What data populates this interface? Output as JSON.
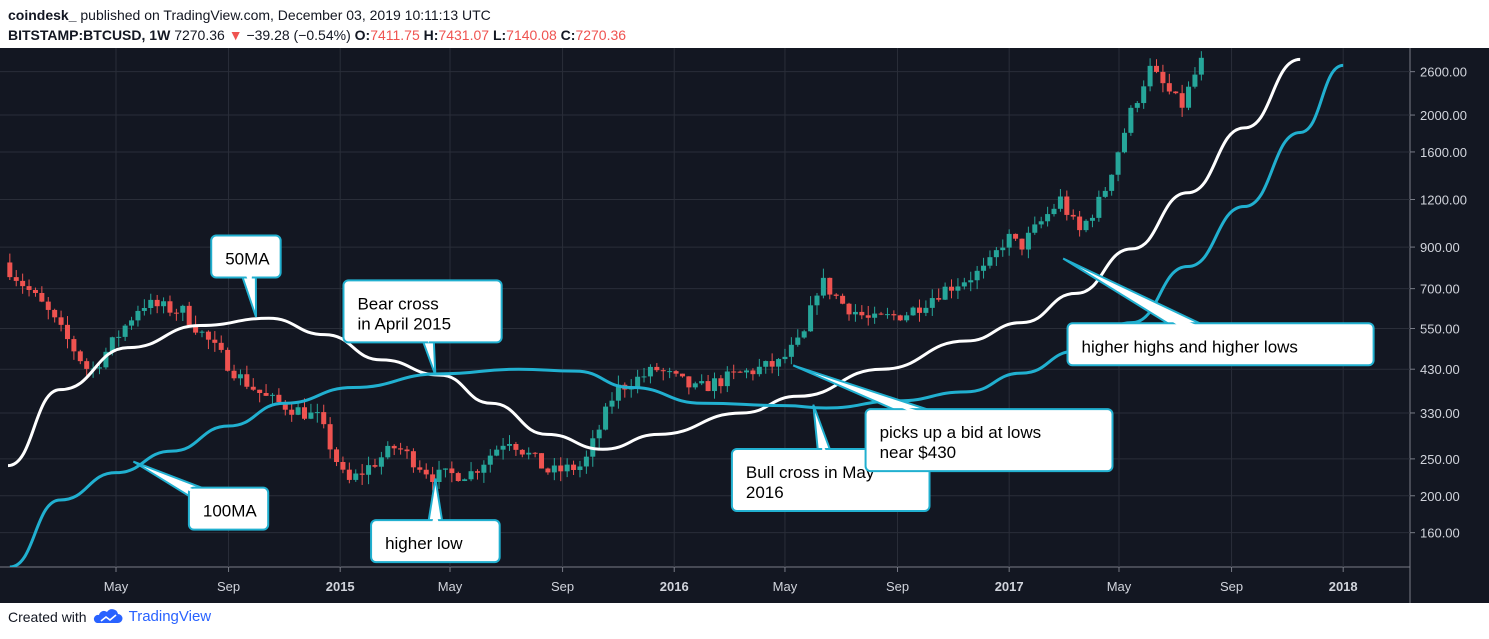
{
  "header": {
    "publisher": "coindesk_",
    "published_text": "published on TradingView.com, December 03, 2019 10:11:13 UTC",
    "symbol": "BITSTAMP:BTCUSD, 1W",
    "last": "7270.36",
    "change": "−39.28 (−0.54%)",
    "o_label": "O:",
    "o": "7411.75",
    "h_label": "H:",
    "h": "7431.07",
    "l_label": "L:",
    "l": "7140.08",
    "c_label": "C:",
    "c": "7270.36"
  },
  "footer": {
    "created_with": "Created with",
    "brand": "TradingView",
    "logo_icon": "tradingview-cloud-icon"
  },
  "colors": {
    "background": "#131722",
    "up": "#26a69a",
    "down": "#ef5350",
    "ma50": "#ffffff",
    "ma100": "#21b0d0",
    "grid": "#2a2e39"
  },
  "chart_data": {
    "type": "candlestick",
    "y_scale": "log",
    "grid": true,
    "y_ticks": [
      160,
      200,
      250,
      330,
      430,
      550,
      700,
      900,
      1200,
      1600,
      2000,
      2600
    ],
    "y_tick_labels": [
      "160.00",
      "200.00",
      "250.00",
      "330.00",
      "430.00",
      "550.00",
      "700.00",
      "900.00",
      "1200.00",
      "1600.00",
      "2000.00",
      "2600.00"
    ],
    "x_ticks": [
      {
        "label": "May",
        "date": "2014-05-01",
        "bold": false
      },
      {
        "label": "Sep",
        "date": "2014-09-01",
        "bold": false
      },
      {
        "label": "2015",
        "date": "2015-01-01",
        "bold": true
      },
      {
        "label": "May",
        "date": "2015-05-01",
        "bold": false
      },
      {
        "label": "Sep",
        "date": "2015-09-01",
        "bold": false
      },
      {
        "label": "2016",
        "date": "2016-01-01",
        "bold": true
      },
      {
        "label": "May",
        "date": "2016-05-01",
        "bold": false
      },
      {
        "label": "Sep",
        "date": "2016-09-01",
        "bold": false
      },
      {
        "label": "2017",
        "date": "2017-01-01",
        "bold": true
      },
      {
        "label": "May",
        "date": "2017-05-01",
        "bold": false
      },
      {
        "label": "Sep",
        "date": "2017-09-01",
        "bold": false
      },
      {
        "label": "2018",
        "date": "2018-01-01",
        "bold": true
      }
    ],
    "x_range": [
      "2014-01-03",
      "2018-03-15"
    ],
    "y_range": [
      130,
      3000
    ],
    "price_anchors": [
      {
        "date": "2014-01-05",
        "price": 820
      },
      {
        "date": "2014-02-20",
        "price": 620
      },
      {
        "date": "2014-04-10",
        "price": 420
      },
      {
        "date": "2014-06-05",
        "price": 640
      },
      {
        "date": "2014-07-20",
        "price": 610
      },
      {
        "date": "2014-09-20",
        "price": 410
      },
      {
        "date": "2014-10-20",
        "price": 360
      },
      {
        "date": "2014-12-15",
        "price": 320
      },
      {
        "date": "2015-01-15",
        "price": 215
      },
      {
        "date": "2015-03-10",
        "price": 270
      },
      {
        "date": "2015-04-20",
        "price": 225
      },
      {
        "date": "2015-06-01",
        "price": 230
      },
      {
        "date": "2015-07-10",
        "price": 285
      },
      {
        "date": "2015-08-25",
        "price": 230
      },
      {
        "date": "2015-10-01",
        "price": 240
      },
      {
        "date": "2015-11-05",
        "price": 380
      },
      {
        "date": "2015-12-20",
        "price": 430
      },
      {
        "date": "2016-02-01",
        "price": 380
      },
      {
        "date": "2016-03-15",
        "price": 415
      },
      {
        "date": "2016-05-01",
        "price": 445
      },
      {
        "date": "2016-05-28",
        "price": 520
      },
      {
        "date": "2016-06-15",
        "price": 740
      },
      {
        "date": "2016-07-10",
        "price": 640
      },
      {
        "date": "2016-08-10",
        "price": 575
      },
      {
        "date": "2016-09-20",
        "price": 605
      },
      {
        "date": "2016-10-25",
        "price": 690
      },
      {
        "date": "2016-12-15",
        "price": 790
      },
      {
        "date": "2017-01-05",
        "price": 960
      },
      {
        "date": "2017-01-20",
        "price": 900
      },
      {
        "date": "2017-03-05",
        "price": 1200
      },
      {
        "date": "2017-03-25",
        "price": 980
      },
      {
        "date": "2017-04-20",
        "price": 1220
      },
      {
        "date": "2017-05-20",
        "price": 2000
      },
      {
        "date": "2017-06-10",
        "price": 2650
      },
      {
        "date": "2017-07-15",
        "price": 2100
      },
      {
        "date": "2017-08-05",
        "price": 2750
      }
    ],
    "series": [
      {
        "name": "50MA",
        "color": "#ffffff",
        "points": [
          {
            "date": "2014-01-03",
            "price": 240
          },
          {
            "date": "2014-03-01",
            "price": 380
          },
          {
            "date": "2014-05-15",
            "price": 490
          },
          {
            "date": "2014-08-01",
            "price": 560
          },
          {
            "date": "2014-10-15",
            "price": 585
          },
          {
            "date": "2014-12-15",
            "price": 530
          },
          {
            "date": "2015-02-15",
            "price": 455
          },
          {
            "date": "2015-04-20",
            "price": 415
          },
          {
            "date": "2015-06-15",
            "price": 350
          },
          {
            "date": "2015-08-15",
            "price": 290
          },
          {
            "date": "2015-10-15",
            "price": 265
          },
          {
            "date": "2015-12-15",
            "price": 290
          },
          {
            "date": "2016-03-15",
            "price": 330
          },
          {
            "date": "2016-05-15",
            "price": 365
          },
          {
            "date": "2016-08-15",
            "price": 430
          },
          {
            "date": "2016-11-15",
            "price": 510
          },
          {
            "date": "2017-01-15",
            "price": 570
          },
          {
            "date": "2017-03-15",
            "price": 680
          },
          {
            "date": "2017-05-15",
            "price": 890
          },
          {
            "date": "2017-07-15",
            "price": 1250
          },
          {
            "date": "2017-09-15",
            "price": 1850
          },
          {
            "date": "2017-11-15",
            "price": 2800
          }
        ]
      },
      {
        "name": "100MA",
        "color": "#21b0d0",
        "points": [
          {
            "date": "2014-01-05",
            "price": 130
          },
          {
            "date": "2014-03-01",
            "price": 195
          },
          {
            "date": "2014-05-01",
            "price": 230
          },
          {
            "date": "2014-07-01",
            "price": 262
          },
          {
            "date": "2014-09-01",
            "price": 305
          },
          {
            "date": "2014-11-01",
            "price": 350
          },
          {
            "date": "2015-01-15",
            "price": 385
          },
          {
            "date": "2015-04-20",
            "price": 418
          },
          {
            "date": "2015-07-15",
            "price": 430
          },
          {
            "date": "2015-09-15",
            "price": 425
          },
          {
            "date": "2015-11-15",
            "price": 385
          },
          {
            "date": "2016-02-01",
            "price": 350
          },
          {
            "date": "2016-05-01",
            "price": 345
          },
          {
            "date": "2016-06-15",
            "price": 340
          },
          {
            "date": "2016-09-01",
            "price": 355
          },
          {
            "date": "2016-11-15",
            "price": 375
          },
          {
            "date": "2017-01-15",
            "price": 420
          },
          {
            "date": "2017-03-15",
            "price": 480
          },
          {
            "date": "2017-05-15",
            "price": 570
          },
          {
            "date": "2017-07-15",
            "price": 800
          },
          {
            "date": "2017-09-15",
            "price": 1150
          },
          {
            "date": "2017-11-15",
            "price": 1800
          },
          {
            "date": "2018-01-01",
            "price": 2700
          }
        ]
      }
    ],
    "annotations": [
      {
        "id": "ma50",
        "text": [
          "50MA"
        ],
        "anchor": {
          "date": "2014-10-01",
          "price": 590
        },
        "box_center": {
          "date": "2014-09-20",
          "price": 850
        }
      },
      {
        "id": "bear",
        "text": [
          "Bear cross",
          "in April 2015"
        ],
        "anchor": {
          "date": "2015-04-15",
          "price": 415
        },
        "box_center": {
          "date": "2015-04-01",
          "price": 610
        }
      },
      {
        "id": "ma100",
        "text": [
          "100MA"
        ],
        "anchor": {
          "date": "2014-05-20",
          "price": 246
        },
        "box_center": {
          "date": "2014-09-01",
          "price": 185
        }
      },
      {
        "id": "higherlow",
        "text": [
          "higher low"
        ],
        "anchor": {
          "date": "2015-04-15",
          "price": 222
        },
        "box_center": {
          "date": "2015-04-15",
          "price": 152
        }
      },
      {
        "id": "bullcross",
        "text": [
          "Bull cross in May",
          "2016"
        ],
        "anchor": {
          "date": "2016-06-01",
          "price": 347
        },
        "box_center": {
          "date": "2016-06-20",
          "price": 220
        }
      },
      {
        "id": "bid",
        "text": [
          "picks up a bid at lows",
          "near $430"
        ],
        "anchor": {
          "date": "2016-05-10",
          "price": 440
        },
        "box_center": {
          "date": "2016-12-10",
          "price": 280
        }
      },
      {
        "id": "higherhighs",
        "text": [
          "higher highs and higher lows"
        ],
        "anchor": {
          "date": "2017-03-01",
          "price": 840
        },
        "box_center": {
          "date": "2017-08-20",
          "price": 500
        }
      }
    ]
  }
}
